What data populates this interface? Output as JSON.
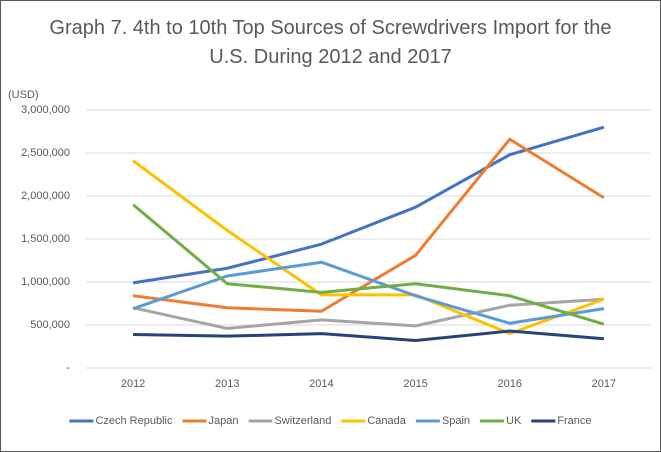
{
  "chart_data": {
    "type": "line",
    "title": "Graph 7. 4th to 10th Top Sources of Screwdrivers Import for the U.S. During 2012 and 2017",
    "y_label": "(USD)",
    "categories": [
      "2012",
      "2013",
      "2014",
      "2015",
      "2016",
      "2017"
    ],
    "series": [
      {
        "name": "Czech Republic",
        "color": "#4472c4",
        "values": [
          990000,
          1160000,
          1440000,
          1870000,
          2480000,
          2800000
        ]
      },
      {
        "name": "Japan",
        "color": "#ed7d31",
        "values": [
          840000,
          700000,
          660000,
          1310000,
          2660000,
          1980000
        ]
      },
      {
        "name": "Switzerland",
        "color": "#a5a5a5",
        "values": [
          700000,
          460000,
          560000,
          490000,
          730000,
          800000
        ]
      },
      {
        "name": "Canada",
        "color": "#ffc000",
        "values": [
          2410000,
          1600000,
          850000,
          850000,
          400000,
          800000
        ]
      },
      {
        "name": "Spain",
        "color": "#5b9bd5",
        "values": [
          690000,
          1070000,
          1230000,
          840000,
          520000,
          690000
        ]
      },
      {
        "name": "UK",
        "color": "#70ad47",
        "values": [
          1900000,
          980000,
          880000,
          980000,
          840000,
          510000
        ]
      },
      {
        "name": "France",
        "color": "#264478",
        "values": [
          390000,
          370000,
          400000,
          320000,
          430000,
          340000
        ]
      }
    ],
    "ylim": [
      0,
      3000000
    ],
    "yticks": [
      {
        "value": 0,
        "label": "-"
      },
      {
        "value": 500000,
        "label": "500,000"
      },
      {
        "value": 1000000,
        "label": "1,000,000"
      },
      {
        "value": 1500000,
        "label": "1,500,000"
      },
      {
        "value": 2000000,
        "label": "2,000,000"
      },
      {
        "value": 2500000,
        "label": "2,500,000"
      },
      {
        "value": 3000000,
        "label": "3,000,000"
      }
    ],
    "grid": true,
    "legend": "bottom"
  }
}
